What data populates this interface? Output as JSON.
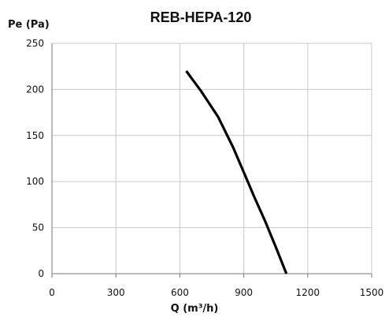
{
  "chart_data": {
    "type": "line",
    "title": "REB-HEPA-120",
    "xlabel": "Q (m³/h)",
    "ylabel": "Pe (Pa)",
    "xlim": [
      0,
      1500
    ],
    "ylim": [
      0,
      250
    ],
    "xticks": [
      0,
      300,
      600,
      900,
      1200,
      1500
    ],
    "yticks": [
      0,
      50,
      100,
      150,
      200,
      250
    ],
    "grid": true,
    "series": [
      {
        "color": "#000000",
        "x": [
          630,
          700,
          780,
          850,
          900,
          950,
          1000,
          1050,
          1100
        ],
        "y": [
          220,
          198,
          170,
          137,
          110,
          83,
          57,
          29,
          0
        ]
      }
    ]
  }
}
